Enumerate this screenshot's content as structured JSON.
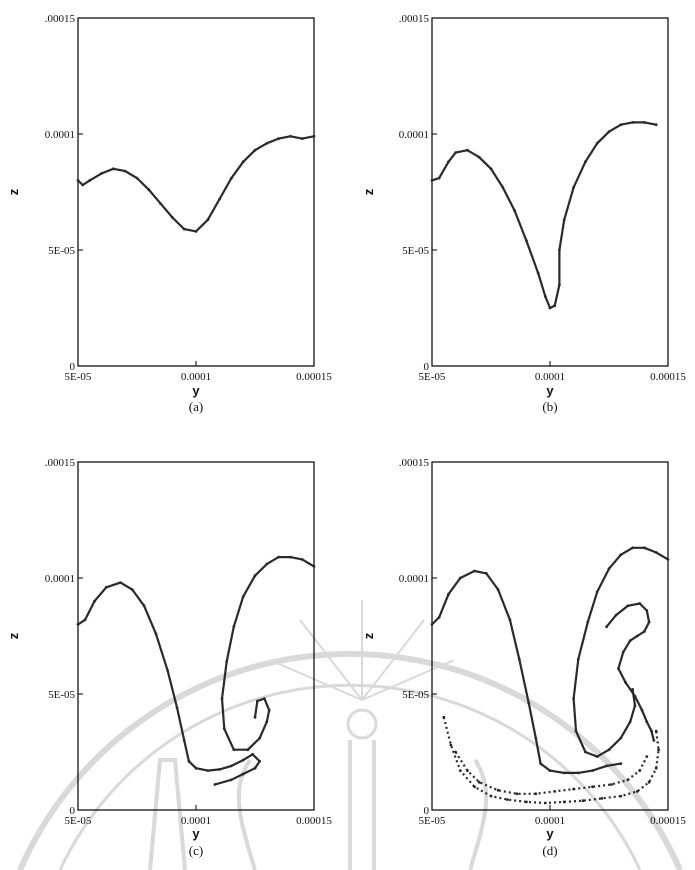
{
  "figure": {
    "colors": {
      "curve": "#2a2a2a",
      "axis": "#000000",
      "watermark": "#d9d9d9"
    }
  },
  "chart_data": [
    {
      "type": "scatter",
      "caption": "(a)",
      "xlabel": "y",
      "ylabel": "z",
      "xlim": [
        5e-05,
        0.00015
      ],
      "ylim": [
        0,
        0.00015
      ],
      "xticks": [
        {
          "v": 5e-05,
          "label": "5E-05"
        },
        {
          "v": 0.0001,
          "label": "0.0001"
        },
        {
          "v": 0.00015,
          "label": "0.00015"
        }
      ],
      "yticks": [
        {
          "v": 0,
          "label": "0"
        },
        {
          "v": 5e-05,
          "label": "5E-05"
        },
        {
          "v": 0.0001,
          "label": "0.0001"
        },
        {
          "v": 0.00015,
          "label": ".00015"
        }
      ],
      "series": [
        {
          "x": [
            5e-05,
            5.2e-05,
            5.5e-05,
            6e-05,
            6.5e-05,
            7e-05,
            7.5e-05,
            8e-05,
            8.5e-05,
            9e-05,
            9.5e-05,
            0.0001,
            0.000105,
            0.00011,
            0.000115,
            0.00012,
            0.000125,
            0.00013,
            0.000135,
            0.00014,
            0.000145,
            0.00015
          ],
          "y": [
            8e-05,
            7.8e-05,
            8e-05,
            8.3e-05,
            8.5e-05,
            8.4e-05,
            8.1e-05,
            7.6e-05,
            7e-05,
            6.4e-05,
            5.9e-05,
            5.8e-05,
            6.3e-05,
            7.2e-05,
            8.1e-05,
            8.8e-05,
            9.3e-05,
            9.6e-05,
            9.8e-05,
            9.9e-05,
            9.8e-05,
            9.9e-05
          ]
        }
      ]
    },
    {
      "type": "scatter",
      "caption": "(b)",
      "xlabel": "y",
      "ylabel": "z",
      "xlim": [
        5e-05,
        0.00015
      ],
      "ylim": [
        0,
        0.00015
      ],
      "xticks": [
        {
          "v": 5e-05,
          "label": "5E-05"
        },
        {
          "v": 0.0001,
          "label": "0.0001"
        },
        {
          "v": 0.00015,
          "label": "0.00015"
        }
      ],
      "yticks": [
        {
          "v": 0,
          "label": "0"
        },
        {
          "v": 5e-05,
          "label": "5E-05"
        },
        {
          "v": 0.0001,
          "label": "0.0001"
        },
        {
          "v": 0.00015,
          "label": ".00015"
        }
      ],
      "series": [
        {
          "x": [
            5e-05,
            5.3e-05,
            5.7e-05,
            6e-05,
            6.5e-05,
            7e-05,
            7.5e-05,
            8e-05,
            8.5e-05,
            9e-05,
            9.5e-05,
            9.8e-05,
            0.0001,
            0.000102,
            0.000104,
            0.000104,
            0.000106,
            0.00011,
            0.000115,
            0.00012,
            0.000125,
            0.00013,
            0.000135,
            0.00014,
            0.000145
          ],
          "y": [
            8e-05,
            8.1e-05,
            8.8e-05,
            9.2e-05,
            9.3e-05,
            9e-05,
            8.5e-05,
            7.7e-05,
            6.7e-05,
            5.4e-05,
            4e-05,
            3e-05,
            2.5e-05,
            2.6e-05,
            3.5e-05,
            5e-05,
            6.3e-05,
            7.7e-05,
            8.8e-05,
            9.6e-05,
            0.000101,
            0.000104,
            0.000105,
            0.000105,
            0.000104
          ]
        }
      ]
    },
    {
      "type": "scatter",
      "caption": "(c)",
      "xlabel": "y",
      "ylabel": "z",
      "xlim": [
        5e-05,
        0.00015
      ],
      "ylim": [
        0,
        0.00015
      ],
      "xticks": [
        {
          "v": 5e-05,
          "label": "5E-05"
        },
        {
          "v": 0.0001,
          "label": "0.0001"
        },
        {
          "v": 0.00015,
          "label": "0.00015"
        }
      ],
      "yticks": [
        {
          "v": 0,
          "label": "0"
        },
        {
          "v": 5e-05,
          "label": "5E-05"
        },
        {
          "v": 0.0001,
          "label": "0.0001"
        },
        {
          "v": 0.00015,
          "label": ".00015"
        }
      ],
      "series": [
        {
          "x": [
            5e-05,
            5.3e-05,
            5.7e-05,
            6.2e-05,
            6.8e-05,
            7.3e-05,
            7.8e-05,
            8.3e-05,
            8.8e-05,
            9.2e-05,
            9.5e-05,
            9.7e-05,
            0.0001,
            0.000105,
            0.00011,
            0.000115,
            0.00012,
            0.000124,
            0.000127,
            0.000125,
            0.00012,
            0.000115,
            0.000108
          ],
          "y": [
            8e-05,
            8.2e-05,
            9e-05,
            9.6e-05,
            9.8e-05,
            9.5e-05,
            8.8e-05,
            7.6e-05,
            6e-05,
            4.4e-05,
            3e-05,
            2.1e-05,
            1.8e-05,
            1.7e-05,
            1.75e-05,
            1.9e-05,
            2.15e-05,
            2.4e-05,
            2.1e-05,
            1.8e-05,
            1.55e-05,
            1.3e-05,
            1.1e-05
          ]
        },
        {
          "x": [
            0.00015,
            0.000145,
            0.00014,
            0.000135,
            0.00013,
            0.000125,
            0.00012,
            0.000116,
            0.000113,
            0.000111,
            0.000112,
            0.000116,
            0.000122,
            0.000127,
            0.00013,
            0.000131,
            0.000129,
            0.000126,
            0.000125
          ],
          "y": [
            0.000105,
            0.000108,
            0.000109,
            0.000109,
            0.000106,
            0.000101,
            9.2e-05,
            7.9e-05,
            6.4e-05,
            4.8e-05,
            3.5e-05,
            2.6e-05,
            2.6e-05,
            3.1e-05,
            3.8e-05,
            4.3e-05,
            4.8e-05,
            4.7e-05,
            4e-05
          ]
        }
      ]
    },
    {
      "type": "scatter",
      "caption": "(d)",
      "xlabel": "y",
      "ylabel": "z",
      "xlim": [
        5e-05,
        0.00015
      ],
      "ylim": [
        0,
        0.00015
      ],
      "xticks": [
        {
          "v": 5e-05,
          "label": "5E-05"
        },
        {
          "v": 0.0001,
          "label": "0.0001"
        },
        {
          "v": 0.00015,
          "label": "0.00015"
        }
      ],
      "yticks": [
        {
          "v": 0,
          "label": "0"
        },
        {
          "v": 5e-05,
          "label": "5E-05"
        },
        {
          "v": 0.0001,
          "label": "0.0001"
        },
        {
          "v": 0.00015,
          "label": ".00015"
        }
      ],
      "series": [
        {
          "x": [
            5e-05,
            5.3e-05,
            5.7e-05,
            6.2e-05,
            6.8e-05,
            7.3e-05,
            7.8e-05,
            8.3e-05,
            8.7e-05,
            9.1e-05,
            9.4e-05,
            9.6e-05,
            0.0001,
            0.000106,
            0.000112,
            0.000118,
            0.000124,
            0.00013
          ],
          "y": [
            8e-05,
            8.3e-05,
            9.3e-05,
            0.0001,
            0.000103,
            0.000102,
            9.5e-05,
            8.2e-05,
            6.5e-05,
            4.6e-05,
            3.1e-05,
            2e-05,
            1.7e-05,
            1.6e-05,
            1.6e-05,
            1.7e-05,
            1.9e-05,
            2e-05
          ]
        },
        {
          "x": [
            0.00015,
            0.000145,
            0.00014,
            0.000135,
            0.00013,
            0.000125,
            0.00012,
            0.000116,
            0.000112,
            0.00011,
            0.000111,
            0.000115,
            0.00012,
            0.000125,
            0.00013,
            0.000134,
            0.000136,
            0.000135
          ],
          "y": [
            0.000108,
            0.000111,
            0.000113,
            0.000113,
            0.00011,
            0.000104,
            9.4e-05,
            8.1e-05,
            6.5e-05,
            4.8e-05,
            3.4e-05,
            2.5e-05,
            2.3e-05,
            2.6e-05,
            3.1e-05,
            3.8e-05,
            4.5e-05,
            5.2e-05
          ]
        },
        {
          "x": [
            0.000124,
            0.000128,
            0.000133,
            0.000138,
            0.000141,
            0.000142,
            0.00014,
            0.000137,
            0.000134,
            0.000131,
            0.000129,
            0.000132,
            0.000136,
            0.000139,
            0.000141,
            0.000143,
            0.000144
          ],
          "y": [
            7.9e-05,
            8.4e-05,
            8.8e-05,
            8.9e-05,
            8.6e-05,
            8.1e-05,
            7.7e-05,
            7.5e-05,
            7.3e-05,
            6.8e-05,
            6.1e-05,
            5.5e-05,
            4.9e-05,
            4.3e-05,
            3.8e-05,
            3.4e-05,
            3e-05
          ]
        },
        {
          "x": [
            5.5e-05,
            5.8e-05,
            6.2e-05,
            6.8e-05,
            7.5e-05,
            8.2e-05,
            9e-05,
            9.8e-05,
            0.000106,
            0.000114,
            0.000122,
            0.00013,
            0.000137,
            0.000142,
            0.000145,
            0.000146,
            0.000145
          ],
          "y": [
            4e-05,
            2.8e-05,
            1.7e-05,
            1e-05,
            6e-06,
            4.5e-06,
            3.5e-06,
            3e-06,
            3.5e-06,
            4e-06,
            5e-06,
            6e-06,
            8e-06,
            1.2e-05,
            1.8e-05,
            2.6e-05,
            3.4e-05
          ]
        },
        {
          "x": [
            6e-05,
            6.5e-05,
            7e-05,
            7.8e-05,
            8.6e-05,
            9.4e-05,
            0.000102,
            0.00011,
            0.000118,
            0.000126,
            0.000133,
            0.000138,
            0.000141
          ],
          "y": [
            2.5e-05,
            1.7e-05,
            1.2e-05,
            8.5e-06,
            7e-06,
            7e-06,
            8e-06,
            9e-06,
            1e-05,
            1.1e-05,
            1.3e-05,
            1.7e-05,
            2.3e-05
          ]
        }
      ]
    }
  ]
}
